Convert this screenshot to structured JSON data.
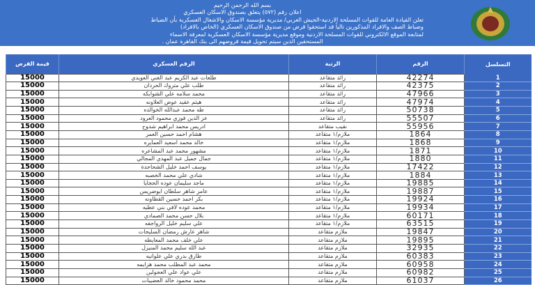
{
  "header": {
    "basmala": "بسم الله الرحمن الرحيم",
    "title": "اعلان رقم (٥٧٢) يتعلق بصندوق الاسكان العسكري",
    "lines": [
      "تعلن القيادة العامة للقوات المسلحة الاردنية-الجيش العربي/ مديرية مؤسسة الاسكان والاشغال العسكرية بأن الضباط",
      "وضباط الصف والافراد المذكورين تالياً قد استحقوا قرض من صندوق الاسكان العسكري (الخاص بالافراد)",
      "لمتابعة الموقع الالكتروني للقوات المسلحة الاردنية وموقع مديرية مؤسسة الاسكان العسكرية لمعرفة الاسماء",
      "المستحقين الذين سيتم تحويل قيمة قروضهم الى بنك القاهرة عمان ."
    ],
    "logo": "jordan-armed-forces-emblem"
  },
  "table": {
    "columns": [
      "التسلسل",
      "الرقم",
      "الرتبة",
      "الرقم العسكري",
      "قيمة القرض"
    ],
    "rows": [
      [
        "1",
        "42274",
        "رائد متقاعد",
        "طلعات عبد الكريم عبد الغني العويدي",
        "15000"
      ],
      [
        "2",
        "42375",
        "رائد متقاعد",
        "طلب علي متروك الحردان",
        "15000"
      ],
      [
        "3",
        "47966",
        "رائد متقاعد",
        "محمد سلامه علي الشوابكه",
        "15000"
      ],
      [
        "4",
        "47974",
        "رائد متقاعد",
        "هيثم عقيد عوض العلاونه",
        "15000"
      ],
      [
        "5",
        "50738",
        "رائد متقاعد",
        "طه محمد عبدالله الخوالده",
        "15000"
      ],
      [
        "6",
        "55507",
        "رائد متقاعد",
        "عز الدين فوزي محمود العرود",
        "15000"
      ],
      [
        "7",
        "55956",
        "نقيب متقاعد",
        "ادريس محمد ابراهيم شدوح",
        "15000"
      ],
      [
        "8",
        "1864",
        "ملازم/١ متقاعد",
        "هشام احمد حسين العمر",
        "15000"
      ],
      [
        "9",
        "1868",
        "ملازم/١ متقاعد",
        "خالد محمد اسعيد العمايره",
        "15000"
      ],
      [
        "10",
        "1871",
        "ملازم/١ متقاعد",
        "مشهور محمد عبد المشاعره",
        "15000"
      ],
      [
        "11",
        "1880",
        "ملازم/١ متقاعد",
        "جمال جميل عبد المهدي المجالي",
        "15000"
      ],
      [
        "12",
        "17422",
        "ملازم/١ متقاعد",
        "يوسف احمد خليل الشحاحدة",
        "15000"
      ],
      [
        "13",
        "1884",
        "ملازم/١ متقاعد",
        "شادي علي محمد الخصبه",
        "15000"
      ],
      [
        "14",
        "19885",
        "ملازم/١ متقاعد",
        "ماجد سليمان عوده الحجايا",
        "15000"
      ],
      [
        "15",
        "19887",
        "ملازم/١ متقاعد",
        "عامر شاهر سلطان ابوضريس",
        "15000"
      ],
      [
        "16",
        "19924",
        "ملازم/١ متقاعد",
        "بكر احمد حسين القطاونه",
        "15000"
      ],
      [
        "17",
        "19934",
        "ملازم/١ متقاعد",
        "محمد عوده لافي بني عطيه",
        "15000"
      ],
      [
        "18",
        "60171",
        "ملازم/١ متقاعد",
        "بلال حسن محمد الصمادي",
        "15000"
      ],
      [
        "19",
        "63515",
        "ملازم/١ متقاعد",
        "علي سليم خليل الرواجفه",
        "15000"
      ],
      [
        "20",
        "19847",
        "ملازم متقاعد",
        "شاهر عارش رمضان السليحات",
        "15000"
      ],
      [
        "21",
        "19895",
        "ملازم متقاعد",
        "علي خلف محمد المعايطه",
        "15000"
      ],
      [
        "22",
        "32935",
        "ملازم متقاعد",
        "عبد الله سليم محمد المنيزل",
        "15000"
      ],
      [
        "23",
        "60383",
        "ملازم متقاعد",
        "طارق بدري علي علوانيه",
        "15000"
      ],
      [
        "24",
        "60958",
        "ملازم متقاعد",
        "محمد عبد المطلب محمد هزايمه",
        "15000"
      ],
      [
        "25",
        "60982",
        "ملازم متقاعد",
        "علي عواد علي العجولين",
        "15000"
      ],
      [
        "26",
        "61037",
        "ملازم متقاعد",
        "محمد محمود خالد العضيبات",
        "15000"
      ]
    ]
  },
  "colors": {
    "banner": "#3c72c8",
    "header": "#3b68c0"
  }
}
